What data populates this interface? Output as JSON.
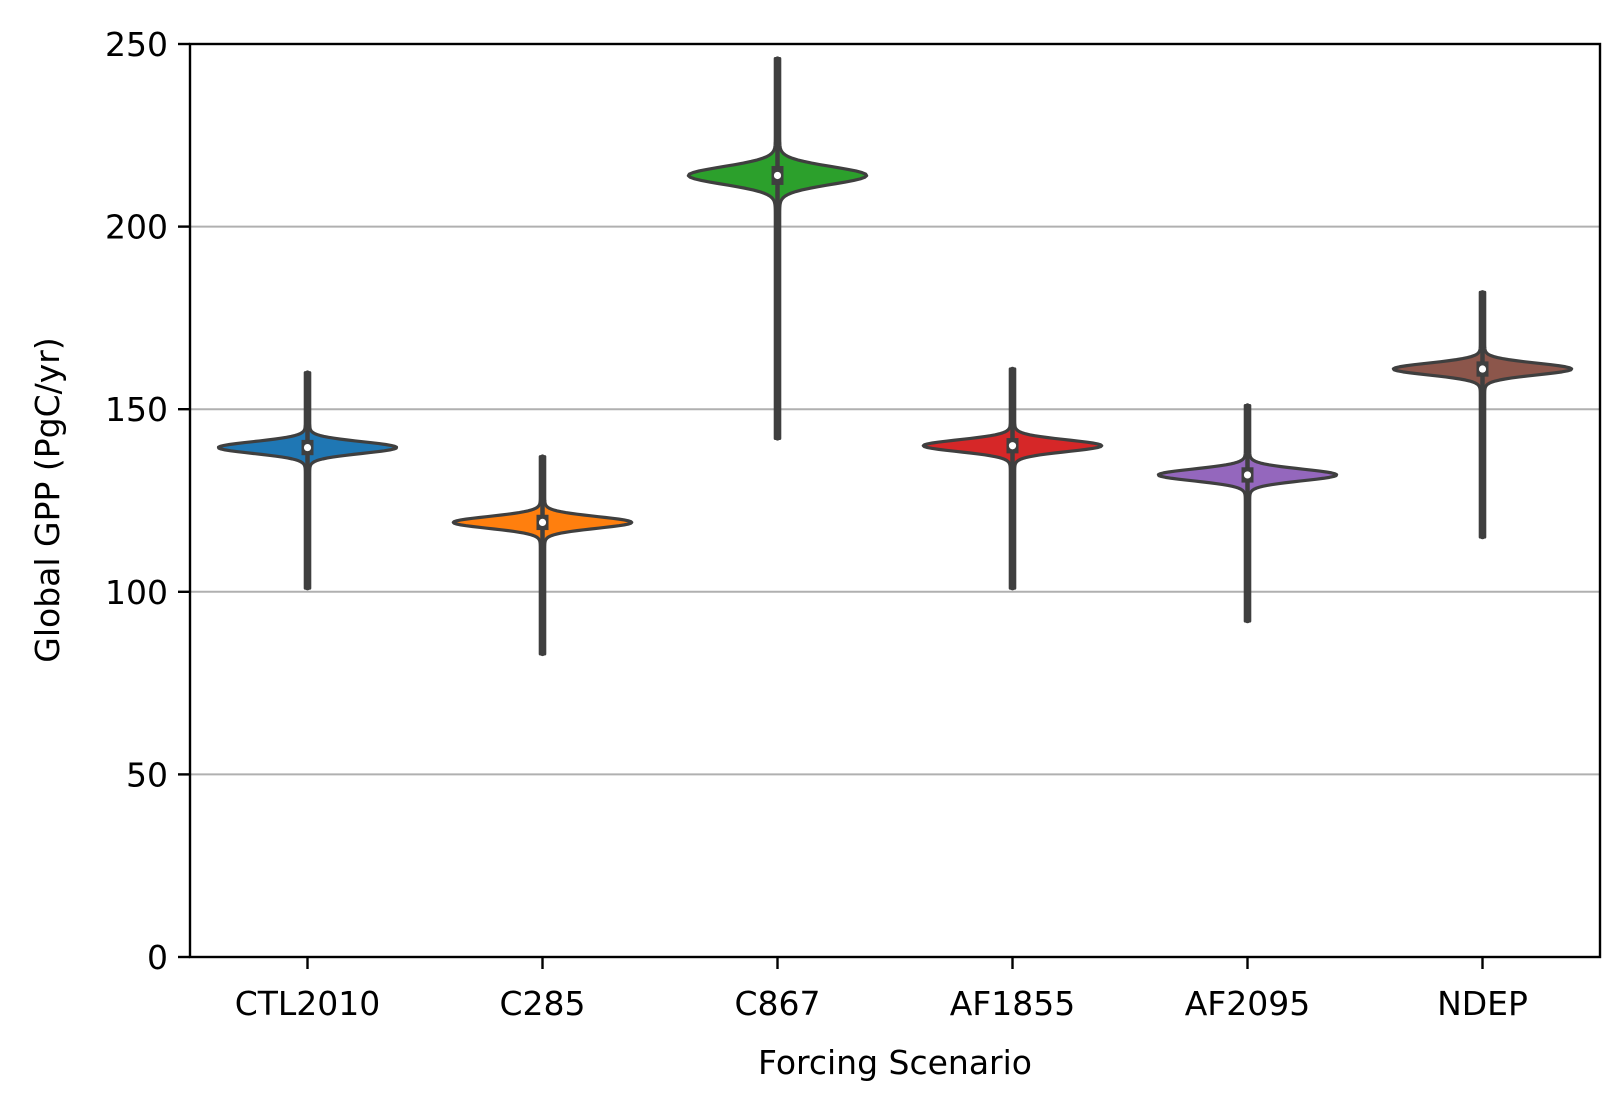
{
  "chart_data": {
    "type": "violin",
    "title": "",
    "xlabel": "Forcing Scenario",
    "ylabel": "Global GPP (PgC/yr)",
    "ylim": [
      0,
      250
    ],
    "yticks": [
      0,
      50,
      100,
      150,
      200,
      250
    ],
    "grid": "horizontal",
    "categories": [
      "CTL2010",
      "C285",
      "C867",
      "AF1855",
      "AF2095",
      "NDEP"
    ],
    "series": [
      {
        "category": "CTL2010",
        "color": "#1f77b4",
        "median": 139.5,
        "q1": 138.5,
        "q3": 140.5,
        "min": 101,
        "max": 160
      },
      {
        "category": "C285",
        "color": "#ff7f0e",
        "median": 119,
        "q1": 118,
        "q3": 120,
        "min": 83,
        "max": 137
      },
      {
        "category": "C867",
        "color": "#2ca02c",
        "median": 214,
        "q1": 212.5,
        "q3": 215.5,
        "min": 142,
        "max": 246
      },
      {
        "category": "AF1855",
        "color": "#d62728",
        "median": 140,
        "q1": 139,
        "q3": 141,
        "min": 101,
        "max": 161
      },
      {
        "category": "AF2095",
        "color": "#9467bd",
        "median": 132,
        "q1": 131,
        "q3": 133,
        "min": 92,
        "max": 151
      },
      {
        "category": "NDEP",
        "color": "#8c564b",
        "median": 161,
        "q1": 160,
        "q3": 162,
        "min": 115,
        "max": 182
      }
    ]
  }
}
